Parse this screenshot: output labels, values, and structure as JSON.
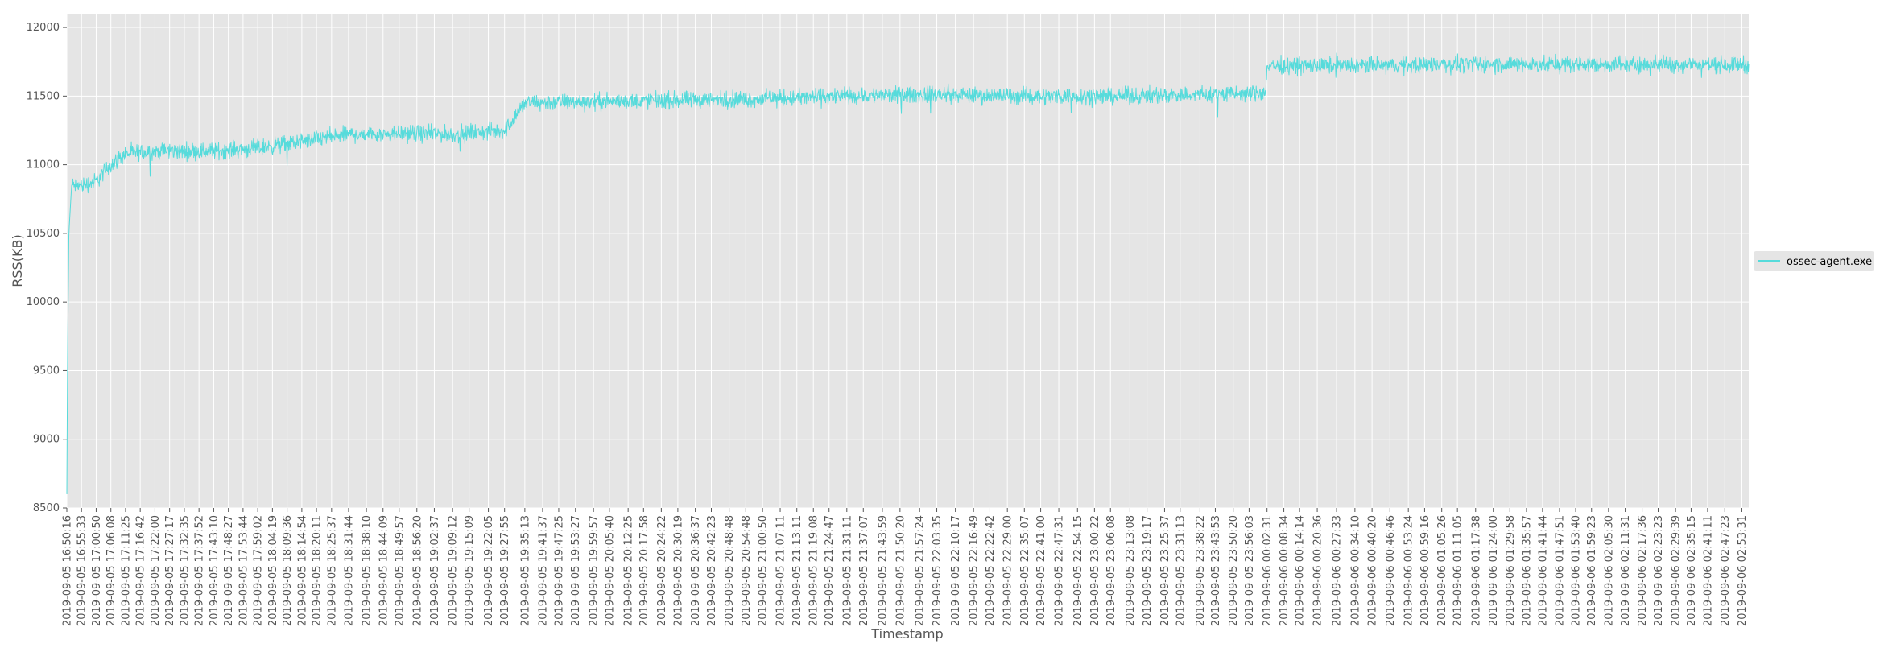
{
  "chart_data": {
    "type": "line",
    "title": "",
    "xlabel": "Timestamp",
    "ylabel": "RSS(KB)",
    "ylim": [
      8500,
      12100
    ],
    "yticks": [
      8500,
      9000,
      9500,
      10000,
      10500,
      11000,
      11500,
      12000
    ],
    "grid": true,
    "legend_placement": "right",
    "x_start": "2019-09-05 16:50:16",
    "x_end": "2019-09-06 02:56:00",
    "x_tick_labels": [
      "2019-09-05 16:50:16",
      "2019-09-05 16:55:33",
      "2019-09-05 17:00:50",
      "2019-09-05 17:06:08",
      "2019-09-05 17:11:25",
      "2019-09-05 17:16:42",
      "2019-09-05 17:22:00",
      "2019-09-05 17:27:17",
      "2019-09-05 17:32:35",
      "2019-09-05 17:37:52",
      "2019-09-05 17:43:10",
      "2019-09-05 17:48:27",
      "2019-09-05 17:53:44",
      "2019-09-05 17:59:02",
      "2019-09-05 18:04:19",
      "2019-09-05 18:09:36",
      "2019-09-05 18:14:54",
      "2019-09-05 18:20:11",
      "2019-09-05 18:25:37",
      "2019-09-05 18:31:44",
      "2019-09-05 18:38:10",
      "2019-09-05 18:44:09",
      "2019-09-05 18:49:57",
      "2019-09-05 18:56:20",
      "2019-09-05 19:02:37",
      "2019-09-05 19:09:12",
      "2019-09-05 19:15:09",
      "2019-09-05 19:22:05",
      "2019-09-05 19:27:55",
      "2019-09-05 19:35:13",
      "2019-09-05 19:41:37",
      "2019-09-05 19:47:25",
      "2019-09-05 19:53:27",
      "2019-09-05 19:59:57",
      "2019-09-05 20:05:40",
      "2019-09-05 20:12:25",
      "2019-09-05 20:17:58",
      "2019-09-05 20:24:22",
      "2019-09-05 20:30:19",
      "2019-09-05 20:36:37",
      "2019-09-05 20:42:23",
      "2019-09-05 20:48:48",
      "2019-09-05 20:54:48",
      "2019-09-05 21:00:50",
      "2019-09-05 21:07:11",
      "2019-09-05 21:13:11",
      "2019-09-05 21:19:08",
      "2019-09-05 21:24:47",
      "2019-09-05 21:31:11",
      "2019-09-05 21:37:07",
      "2019-09-05 21:43:59",
      "2019-09-05 21:50:20",
      "2019-09-05 21:57:24",
      "2019-09-05 22:03:35",
      "2019-09-05 22:10:17",
      "2019-09-05 22:16:49",
      "2019-09-05 22:22:42",
      "2019-09-05 22:29:00",
      "2019-09-05 22:35:07",
      "2019-09-05 22:41:00",
      "2019-09-05 22:47:31",
      "2019-09-05 22:54:15",
      "2019-09-05 23:00:22",
      "2019-09-05 23:06:08",
      "2019-09-05 23:13:08",
      "2019-09-05 23:19:17",
      "2019-09-05 23:25:37",
      "2019-09-05 23:31:13",
      "2019-09-05 23:38:22",
      "2019-09-05 23:43:53",
      "2019-09-05 23:50:20",
      "2019-09-05 23:56:03",
      "2019-09-06 00:02:31",
      "2019-09-06 00:08:34",
      "2019-09-06 00:14:14",
      "2019-09-06 00:20:36",
      "2019-09-06 00:27:33",
      "2019-09-06 00:34:10",
      "2019-09-06 00:40:20",
      "2019-09-06 00:46:46",
      "2019-09-06 00:53:24",
      "2019-09-06 00:59:16",
      "2019-09-06 01:05:26",
      "2019-09-06 01:11:05",
      "2019-09-06 01:17:38",
      "2019-09-06 01:24:00",
      "2019-09-06 01:29:58",
      "2019-09-06 01:35:57",
      "2019-09-06 01:41:44",
      "2019-09-06 01:47:51",
      "2019-09-06 01:53:40",
      "2019-09-06 01:59:23",
      "2019-09-06 02:05:30",
      "2019-09-06 02:11:31",
      "2019-09-06 02:17:36",
      "2019-09-06 02:23:23",
      "2019-09-06 02:29:39",
      "2019-09-06 02:35:15",
      "2019-09-06 02:41:11",
      "2019-09-06 02:47:23",
      "2019-09-06 02:53:31"
    ],
    "series": [
      {
        "name": "ossec-agent.exe",
        "color": "#56dbdb",
        "noise_amplitude": 90,
        "points": [
          {
            "x": "2019-09-05 16:50:16",
            "y": 8600
          },
          {
            "x": "2019-09-05 16:50:30",
            "y": 9500
          },
          {
            "x": "2019-09-05 16:51:00",
            "y": 10500
          },
          {
            "x": "2019-09-05 16:52:00",
            "y": 10850
          },
          {
            "x": "2019-09-05 16:55:33",
            "y": 10850
          },
          {
            "x": "2019-09-05 17:00:50",
            "y": 10880
          },
          {
            "x": "2019-09-05 17:06:08",
            "y": 11000
          },
          {
            "x": "2019-09-05 17:11:25",
            "y": 11080
          },
          {
            "x": "2019-09-05 17:22:00",
            "y": 11100
          },
          {
            "x": "2019-09-05 17:43:10",
            "y": 11100
          },
          {
            "x": "2019-09-05 17:59:02",
            "y": 11120
          },
          {
            "x": "2019-09-05 18:14:54",
            "y": 11170
          },
          {
            "x": "2019-09-05 18:31:44",
            "y": 11220
          },
          {
            "x": "2019-09-05 18:49:57",
            "y": 11230
          },
          {
            "x": "2019-09-05 19:09:12",
            "y": 11220
          },
          {
            "x": "2019-09-05 19:27:55",
            "y": 11250
          },
          {
            "x": "2019-09-05 19:35:13",
            "y": 11450
          },
          {
            "x": "2019-09-05 19:59:57",
            "y": 11460
          },
          {
            "x": "2019-09-05 20:30:19",
            "y": 11470
          },
          {
            "x": "2019-09-05 21:00:50",
            "y": 11480
          },
          {
            "x": "2019-09-05 21:31:11",
            "y": 11500
          },
          {
            "x": "2019-09-05 22:03:35",
            "y": 11510
          },
          {
            "x": "2019-09-05 22:35:07",
            "y": 11500
          },
          {
            "x": "2019-09-05 23:06:08",
            "y": 11500
          },
          {
            "x": "2019-09-05 23:38:22",
            "y": 11510
          },
          {
            "x": "2019-09-06 00:02:00",
            "y": 11520
          },
          {
            "x": "2019-09-06 00:02:31",
            "y": 11720
          },
          {
            "x": "2019-09-06 00:34:10",
            "y": 11720
          },
          {
            "x": "2019-09-06 01:05:26",
            "y": 11730
          },
          {
            "x": "2019-09-06 01:35:57",
            "y": 11730
          },
          {
            "x": "2019-09-06 02:05:30",
            "y": 11730
          },
          {
            "x": "2019-09-06 02:35:15",
            "y": 11730
          },
          {
            "x": "2019-09-06 02:56:00",
            "y": 11730
          }
        ]
      }
    ]
  }
}
